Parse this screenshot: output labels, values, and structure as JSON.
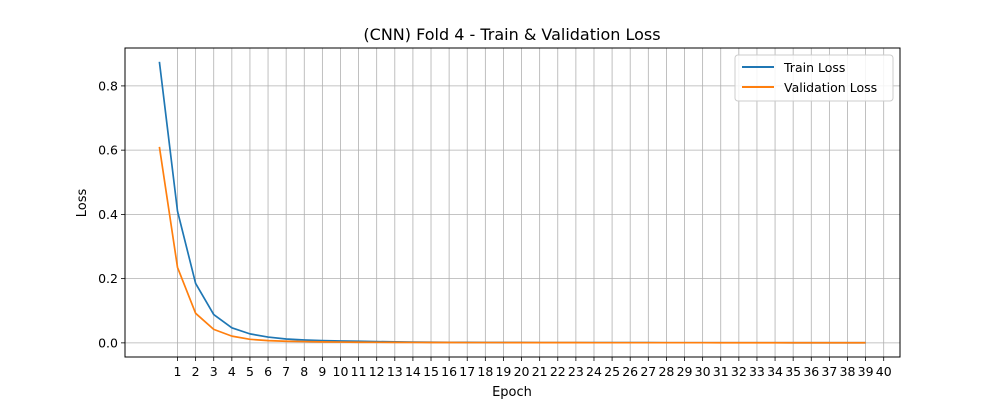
{
  "chart_data": {
    "type": "line",
    "title": "(CNN) Fold 4 - Train & Validation Loss",
    "xlabel": "Epoch",
    "ylabel": "Loss",
    "x": [
      0,
      1,
      2,
      3,
      4,
      5,
      6,
      7,
      8,
      9,
      10,
      11,
      12,
      13,
      14,
      15,
      16,
      17,
      18,
      19,
      20,
      21,
      22,
      23,
      24,
      25,
      26,
      27,
      28,
      29,
      30,
      31,
      32,
      33,
      34,
      35,
      36,
      37,
      38,
      39
    ],
    "xticks": [
      "1",
      "2",
      "3",
      "4",
      "5",
      "6",
      "7",
      "8",
      "9",
      "10",
      "11",
      "12",
      "13",
      "14",
      "15",
      "16",
      "17",
      "18",
      "19",
      "20",
      "21",
      "22",
      "23",
      "24",
      "25",
      "26",
      "27",
      "28",
      "29",
      "30",
      "31",
      "32",
      "33",
      "34",
      "35",
      "36",
      "37",
      "38",
      "39",
      "40"
    ],
    "xlim": [
      -1.9,
      40.9
    ],
    "yticks": [
      "0.0",
      "0.2",
      "0.4",
      "0.6",
      "0.8"
    ],
    "ylim": [
      -0.044,
      0.918
    ],
    "grid": true,
    "legend_position": "top-right",
    "series": [
      {
        "name": "Train Loss",
        "color": "#1f77b4",
        "values": [
          0.875,
          0.41,
          0.185,
          0.088,
          0.047,
          0.028,
          0.018,
          0.012,
          0.009,
          0.007,
          0.006,
          0.005,
          0.004,
          0.003,
          0.0025,
          0.002,
          0.0018,
          0.0015,
          0.0013,
          0.0012,
          0.0011,
          0.001,
          0.0009,
          0.0009,
          0.0008,
          0.0008,
          0.0007,
          0.0007,
          0.0006,
          0.0006,
          0.0006,
          0.0005,
          0.0005,
          0.0005,
          0.0005,
          0.0004,
          0.0004,
          0.0004,
          0.0004,
          0.0004
        ]
      },
      {
        "name": "Validation Loss",
        "color": "#ff7f0e",
        "values": [
          0.61,
          0.235,
          0.092,
          0.042,
          0.021,
          0.011,
          0.007,
          0.005,
          0.004,
          0.003,
          0.0025,
          0.002,
          0.0018,
          0.0015,
          0.0013,
          0.0012,
          0.0011,
          0.001,
          0.0009,
          0.0009,
          0.0008,
          0.0008,
          0.0007,
          0.0007,
          0.0006,
          0.0006,
          0.0006,
          0.0005,
          0.0005,
          0.0005,
          0.0005,
          0.0004,
          0.0004,
          0.0004,
          0.0004,
          0.0004,
          0.0004,
          0.0003,
          0.0003,
          0.0003
        ]
      }
    ]
  }
}
